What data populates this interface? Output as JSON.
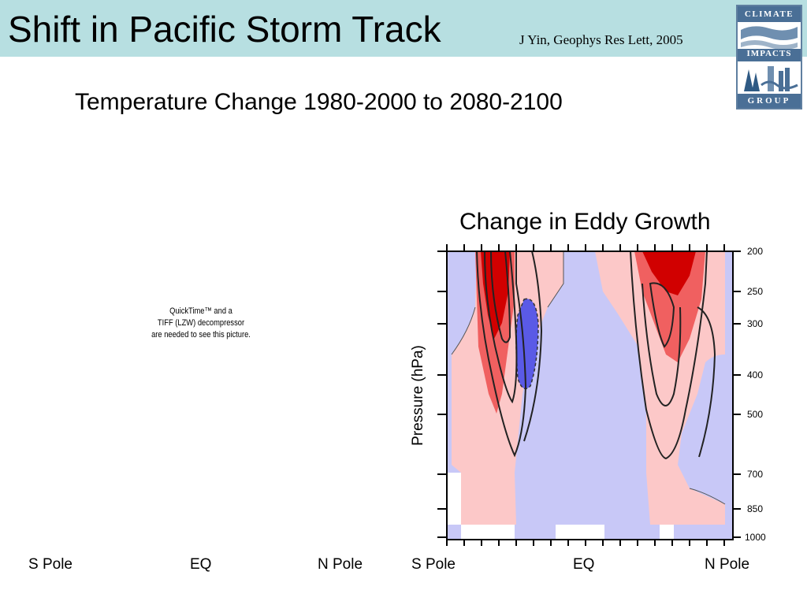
{
  "header": {
    "title": "Shift in Pacific Storm Track",
    "citation": "J Yin, Geophys Res Lett, 2005",
    "logo": {
      "top_text": "CLIMATE",
      "middle_text": "IMPACTS",
      "bottom_text": "GROUP",
      "colors": {
        "frame": "#4a6f96",
        "accent": "#5f7fa0"
      }
    }
  },
  "left_panel": {
    "heading": "Temperature Change 1980-2000 to 2080-2100",
    "placeholder_text": "QuickTime™ and a\nTIFF (LZW) decompressor\nare needed to see this picture.",
    "x_labels": [
      "S Pole",
      "EQ",
      "N Pole"
    ]
  },
  "right_panel": {
    "heading": "Change in Eddy Growth",
    "y_label": "Pressure (hPa)",
    "y_ticks": [
      "200",
      "250",
      "300",
      "400",
      "500",
      "700",
      "850",
      "1000"
    ],
    "x_labels": [
      "S Pole",
      "EQ",
      "N Pole"
    ],
    "colors": {
      "positive_strong": "#d10000",
      "positive_mid": "#f06060",
      "positive_light": "#fcc8c8",
      "negative_light": "#c8c8f7",
      "negative_strong": "#5a5ae6"
    }
  },
  "background_color": "#b7dfe1"
}
